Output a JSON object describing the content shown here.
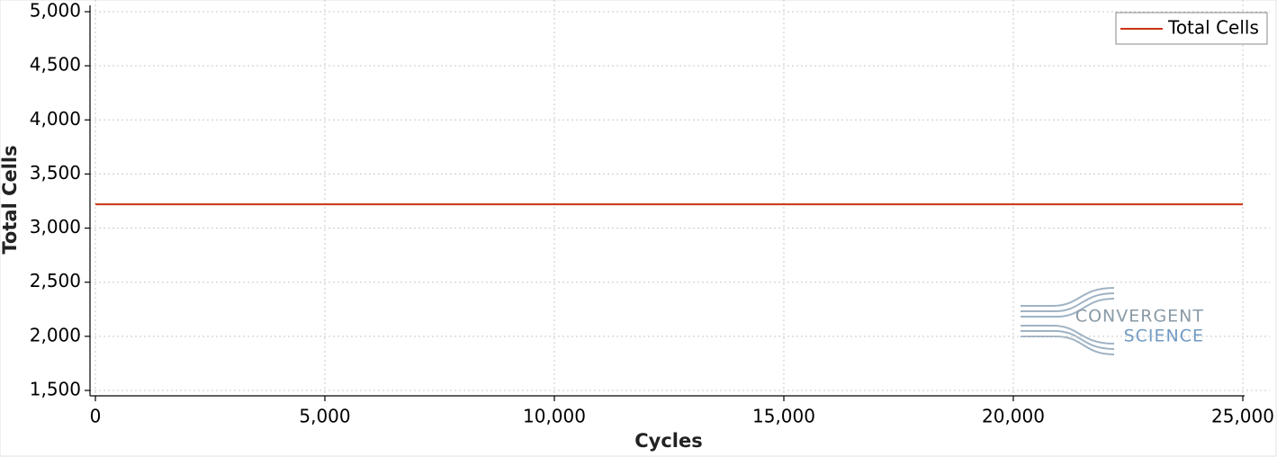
{
  "chart_data": {
    "type": "line",
    "xlabel": "Cycles",
    "ylabel": "Total Cells",
    "x": [
      0,
      25000
    ],
    "series": [
      {
        "name": "Total Cells",
        "color": "#cc3311",
        "values": [
          3220,
          3220
        ]
      }
    ],
    "xlim": [
      0,
      25000
    ],
    "xticks": [
      {
        "value": 0,
        "label": "0"
      },
      {
        "value": 5000,
        "label": "5,000"
      },
      {
        "value": 10000,
        "label": "10,000"
      },
      {
        "value": 15000,
        "label": "15,000"
      },
      {
        "value": 20000,
        "label": "20,000"
      },
      {
        "value": 25000,
        "label": "25,000"
      }
    ],
    "ylim": [
      1500,
      5000
    ],
    "yticks": [
      {
        "value": 1500,
        "label": "1,500"
      },
      {
        "value": 2000,
        "label": "2,000"
      },
      {
        "value": 2500,
        "label": "2,500"
      },
      {
        "value": 3000,
        "label": "3,000"
      },
      {
        "value": 3500,
        "label": "3,500"
      },
      {
        "value": 4000,
        "label": "4,000"
      },
      {
        "value": 4500,
        "label": "4,500"
      },
      {
        "value": 5000,
        "label": "5,000"
      }
    ],
    "grid": true,
    "legend": "upper right",
    "watermark": [
      "CONVERGENT",
      "SCIENCE"
    ]
  }
}
